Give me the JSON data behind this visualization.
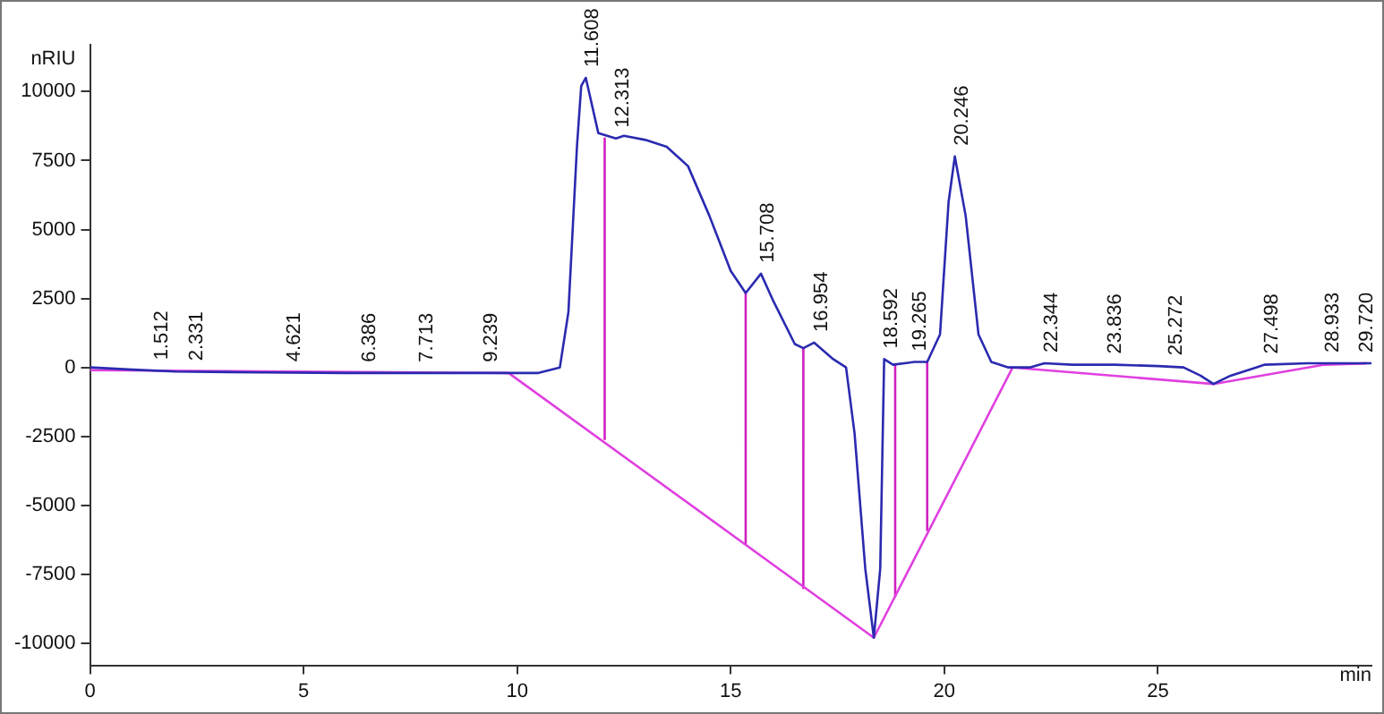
{
  "chart_data": {
    "type": "line",
    "xlabel": "min",
    "ylabel": "nRIU",
    "xlim": [
      0,
      30
    ],
    "ylim": [
      -10800,
      11700
    ],
    "xticks": [
      0,
      5,
      10,
      15,
      20,
      25
    ],
    "yticks": [
      -10000,
      -7500,
      -5000,
      -2500,
      0,
      2500,
      5000,
      7500,
      10000
    ],
    "grid": false,
    "legend": false,
    "marker": "none",
    "line_style": "solid",
    "series": [
      {
        "color": "#2a2ab0",
        "x": [
          0,
          1,
          2,
          4,
          6,
          8,
          9.8,
          10.5,
          11,
          11.2,
          11.4,
          11.5,
          11.608,
          11.9,
          12.313,
          12.5,
          13,
          13.5,
          14,
          14.5,
          15,
          15.35,
          15.708,
          16,
          16.5,
          16.7,
          16.954,
          17.4,
          17.7,
          17.9,
          18.15,
          18.35,
          18.5,
          18.592,
          18.8,
          19.3,
          19.6,
          19.9,
          20.1,
          20.246,
          20.5,
          20.8,
          21.1,
          21.5,
          22,
          22.344,
          23,
          24,
          25,
          25.6,
          26,
          26.3,
          26.7,
          27.3,
          27.5,
          28.5,
          29.72,
          30
        ],
        "values": [
          0,
          -80,
          -150,
          -180,
          -200,
          -200,
          -200,
          -200,
          0,
          2000,
          8000,
          10200,
          10500,
          8500,
          8300,
          8400,
          8250,
          8000,
          7300,
          5500,
          3500,
          2700,
          3400,
          2400,
          850,
          700,
          900,
          300,
          0,
          -2400,
          -7300,
          -9800,
          -7300,
          300,
          100,
          200,
          200,
          1200,
          6000,
          7650,
          5500,
          1200,
          200,
          0,
          0,
          150,
          100,
          100,
          50,
          0,
          -300,
          -600,
          -300,
          0,
          100,
          150,
          150,
          150
        ]
      },
      {
        "color": "#e040e0",
        "x": [
          0,
          9.8,
          18.35,
          21.6,
          26.3,
          28.9,
          29.9
        ],
        "values": [
          -100,
          -200,
          -9800,
          0,
          -600,
          100,
          150
        ]
      },
      {
        "color": "#d020c0",
        "x": [
          12.05,
          12.05
        ],
        "values": [
          8300,
          -2600
        ]
      },
      {
        "color": "#d020c0",
        "x": [
          15.35,
          15.35
        ],
        "values": [
          2700,
          -6400
        ]
      },
      {
        "color": "#d020c0",
        "x": [
          16.7,
          16.7
        ],
        "values": [
          700,
          -8000
        ]
      },
      {
        "color": "#d020c0",
        "x": [
          18.85,
          18.85
        ],
        "values": [
          100,
          -8300
        ]
      },
      {
        "color": "#d020c0",
        "x": [
          19.6,
          19.6
        ],
        "values": [
          200,
          -5900
        ]
      }
    ],
    "annotations": [
      {
        "text": "1.512",
        "x": 1.512,
        "y": -120
      },
      {
        "text": "2.331",
        "x": 2.331,
        "y": -150
      },
      {
        "text": "4.621",
        "x": 4.621,
        "y": -180
      },
      {
        "text": "6.386",
        "x": 6.386,
        "y": -200
      },
      {
        "text": "7.713",
        "x": 7.713,
        "y": -200
      },
      {
        "text": "9.239",
        "x": 9.239,
        "y": -200
      },
      {
        "text": "11.608",
        "x": 11.608,
        "y": 10500
      },
      {
        "text": "12.313",
        "x": 12.313,
        "y": 8300
      },
      {
        "text": "15.708",
        "x": 15.708,
        "y": 3400
      },
      {
        "text": "16.954",
        "x": 16.954,
        "y": 900
      },
      {
        "text": "18.592",
        "x": 18.592,
        "y": 300
      },
      {
        "text": "19.265",
        "x": 19.265,
        "y": 200
      },
      {
        "text": "20.246",
        "x": 20.246,
        "y": 7650
      },
      {
        "text": "22.344",
        "x": 22.344,
        "y": 150
      },
      {
        "text": "23.836",
        "x": 23.836,
        "y": 100
      },
      {
        "text": "25.272",
        "x": 25.272,
        "y": 50
      },
      {
        "text": "27.498",
        "x": 27.498,
        "y": 100
      },
      {
        "text": "28.933",
        "x": 28.933,
        "y": 150
      },
      {
        "text": "29.720",
        "x": 29.72,
        "y": 150
      }
    ]
  }
}
